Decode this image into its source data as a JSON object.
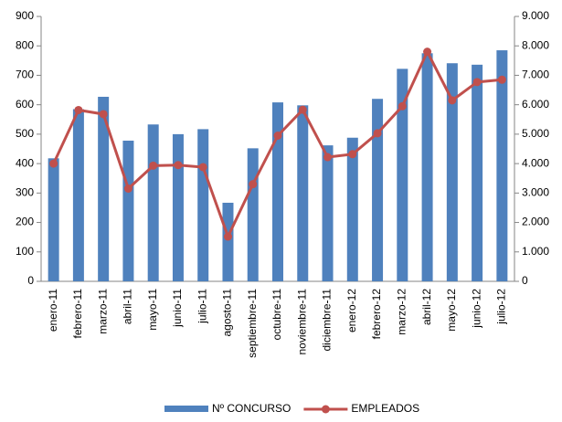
{
  "chart_data": {
    "type": "bar",
    "categories": [
      "enero-11",
      "febrero-11",
      "marzo-11",
      "abril-11",
      "mayo-11",
      "junio-11",
      "julio-11",
      "agosto-11",
      "septiembre-11",
      "octubre-11",
      "noviembre-11",
      "diciembre-11",
      "enero-12",
      "febrero-12",
      "marzo-12",
      "abril-12",
      "mayo-12",
      "junio-12",
      "julio-12"
    ],
    "series": [
      {
        "name": "Nº CONCURSO",
        "type": "bar",
        "color": "#4f81bd",
        "values": [
          418,
          585,
          627,
          478,
          533,
          500,
          517,
          267,
          452,
          608,
          598,
          462,
          488,
          620,
          722,
          775,
          741,
          736,
          785
        ]
      },
      {
        "name": "EMPLEADOS",
        "type": "line",
        "color": "#c0504d",
        "axis": "y2",
        "values": [
          4000,
          5820,
          5680,
          3150,
          3930,
          3950,
          3880,
          1520,
          3300,
          4950,
          5830,
          4220,
          4320,
          5030,
          5950,
          7800,
          6150,
          6770,
          6850
        ]
      }
    ],
    "ylim": [
      0,
      900
    ],
    "yticks": [
      0,
      100,
      200,
      300,
      400,
      500,
      600,
      700,
      800,
      900
    ],
    "y2lim": [
      0,
      9000
    ],
    "y2ticks": [
      0,
      {
        "value": 1000,
        "label": "1.000"
      },
      {
        "value": 2000,
        "label": "2.000"
      },
      {
        "value": 3000,
        "label": "3.000"
      },
      {
        "value": 4000,
        "label": "4.000"
      },
      {
        "value": 5000,
        "label": "5.000"
      },
      {
        "value": 6000,
        "label": "6.000"
      },
      {
        "value": 7000,
        "label": "7.000"
      },
      {
        "value": 8000,
        "label": "8.000"
      },
      {
        "value": 9000,
        "label": "9.000"
      }
    ],
    "grid": false
  }
}
